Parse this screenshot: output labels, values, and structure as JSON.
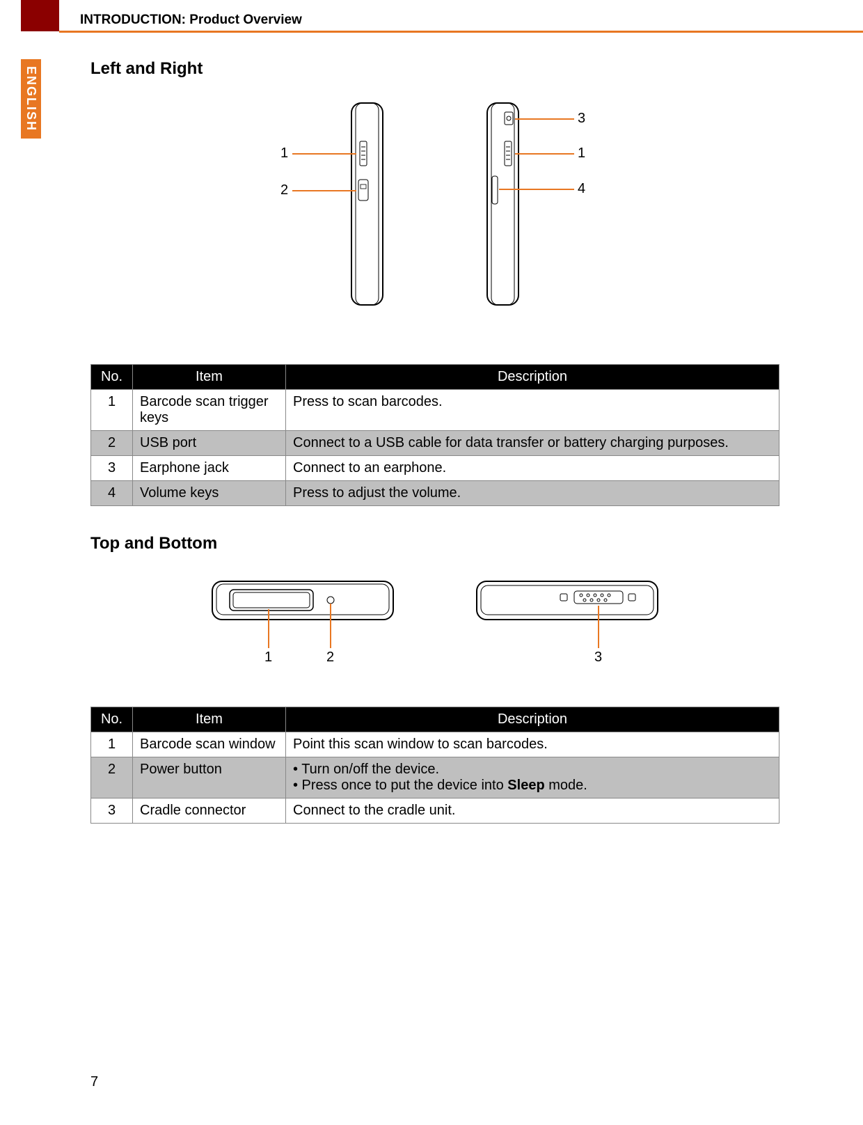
{
  "header": {
    "title": "INTRODUCTION: Product Overview"
  },
  "sideTab": "ENGLISH",
  "pageNumber": "7",
  "section1": {
    "title": "Left and Right",
    "tableHeaders": {
      "no": "No.",
      "item": "Item",
      "desc": "Description"
    },
    "rows": [
      {
        "no": "1",
        "item": "Barcode scan trigger keys",
        "desc": "Press to scan barcodes."
      },
      {
        "no": "2",
        "item": "USB port",
        "desc": "Connect to a USB cable for data transfer or battery charging purposes."
      },
      {
        "no": "3",
        "item": "Earphone jack",
        "desc": "Connect to an earphone."
      },
      {
        "no": "4",
        "item": "Volume keys",
        "desc": "Press to adjust the volume."
      }
    ],
    "leftCallouts": [
      {
        "num": "1"
      },
      {
        "num": "2"
      }
    ],
    "rightCallouts": [
      {
        "num": "3"
      },
      {
        "num": "1"
      },
      {
        "num": "4"
      }
    ]
  },
  "section2": {
    "title": "Top and Bottom",
    "tableHeaders": {
      "no": "No.",
      "item": "Item",
      "desc": "Description"
    },
    "rows": [
      {
        "no": "1",
        "item": "Barcode scan window",
        "desc": "Point this scan window to scan barcodes."
      },
      {
        "no": "2",
        "item": "Power button",
        "desc": "• Turn on/off the device.\n• Press once to put the device into ",
        "boldPart": "Sleep",
        "descAfter": " mode."
      },
      {
        "no": "3",
        "item": "Cradle connector",
        "desc": "Connect to the cradle unit."
      }
    ],
    "topCallouts": [
      {
        "num": "1"
      },
      {
        "num": "2"
      }
    ],
    "bottomCallouts": [
      {
        "num": "3"
      }
    ]
  },
  "colors": {
    "accent": "#e87722",
    "darkRed": "#8b0000",
    "tableShade": "#bfbfbf",
    "tableHeaderBg": "#000000",
    "border": "#888888"
  }
}
